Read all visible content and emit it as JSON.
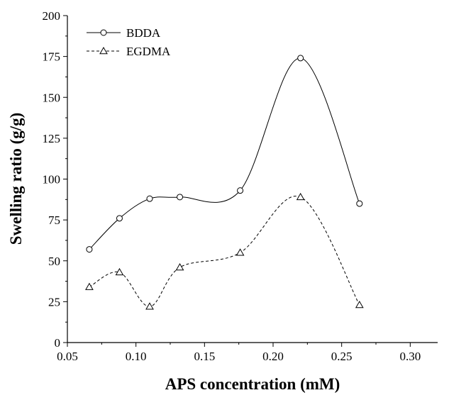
{
  "chart_data": {
    "type": "line",
    "title": "",
    "xlabel": "APS concentration (mM)",
    "ylabel": "Swelling ratio (g/g)",
    "xlim": [
      0.05,
      0.32
    ],
    "ylim": [
      0,
      200
    ],
    "x_ticks": [
      0.05,
      0.1,
      0.15,
      0.2,
      0.25,
      0.3
    ],
    "x_tick_labels": [
      "0.05",
      "0.10",
      "0.15",
      "0.20",
      "0.25",
      "0.30"
    ],
    "y_ticks": [
      0,
      25,
      50,
      75,
      100,
      125,
      150,
      175,
      200
    ],
    "y_tick_labels": [
      "0",
      "25",
      "50",
      "75",
      "100",
      "125",
      "150",
      "175",
      "200"
    ],
    "grid": false,
    "legend": "top-left",
    "x": [
      0.066,
      0.088,
      0.11,
      0.132,
      0.176,
      0.22,
      0.263
    ],
    "series": [
      {
        "name": "BDDA",
        "marker": "circle",
        "dash": "solid",
        "values": [
          57,
          76,
          88,
          89,
          93,
          174,
          85
        ]
      },
      {
        "name": "EGDMA",
        "marker": "triangle",
        "dash": "dashed",
        "values": [
          34,
          43,
          22,
          46,
          55,
          89,
          23
        ]
      }
    ]
  }
}
